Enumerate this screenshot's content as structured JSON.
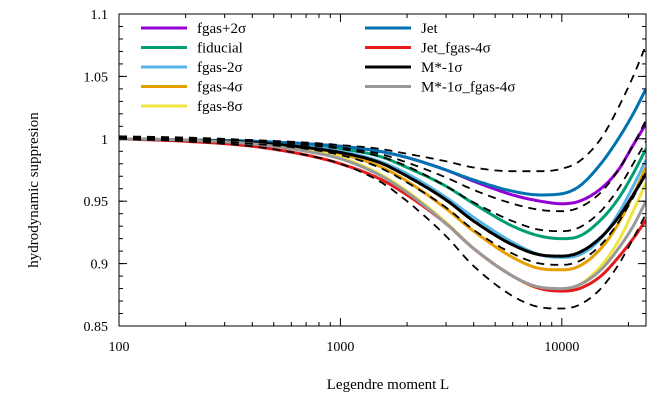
{
  "chart_data": {
    "type": "line",
    "title": "",
    "xlabel": "Legendre moment L",
    "ylabel": "hydrodynamic suppresion",
    "xscale": "log",
    "xlim": [
      100,
      24000
    ],
    "ylim": [
      0.85,
      1.1
    ],
    "x_ticks": [
      {
        "value": 100,
        "label": "100"
      },
      {
        "value": 1000,
        "label": "1000"
      },
      {
        "value": 10000,
        "label": "10000"
      }
    ],
    "y_ticks": [
      {
        "value": 0.85,
        "label": "0.85"
      },
      {
        "value": 0.9,
        "label": "0.9"
      },
      {
        "value": 0.95,
        "label": "0.95"
      },
      {
        "value": 1.0,
        "label": "1"
      },
      {
        "value": 1.05,
        "label": "1.05"
      },
      {
        "value": 1.1,
        "label": "1.1"
      }
    ],
    "grid": false,
    "legend_position": "top-left",
    "x": [
      100,
      200,
      400,
      700,
      1000,
      1500,
      2000,
      3000,
      4000,
      6000,
      8000,
      10000,
      12000,
      15000,
      18000,
      21000,
      24000
    ],
    "series": [
      {
        "name": "fgas+2σ",
        "color": "#9400d3",
        "dashed": false,
        "legend_col": 0,
        "values": [
          1.0,
          0.999,
          0.998,
          0.996,
          0.994,
          0.99,
          0.985,
          0.975,
          0.966,
          0.955,
          0.95,
          0.948,
          0.95,
          0.96,
          0.975,
          0.995,
          1.012
        ]
      },
      {
        "name": "fiducial",
        "color": "#009e73",
        "dashed": false,
        "legend_col": 0,
        "values": [
          1.0,
          0.999,
          0.998,
          0.995,
          0.992,
          0.986,
          0.977,
          0.962,
          0.948,
          0.93,
          0.922,
          0.92,
          0.922,
          0.935,
          0.952,
          0.972,
          0.992
        ]
      },
      {
        "name": "fgas-2σ",
        "color": "#56b4e9",
        "dashed": false,
        "legend_col": 0,
        "values": [
          1.0,
          0.999,
          0.997,
          0.994,
          0.99,
          0.982,
          0.972,
          0.953,
          0.937,
          0.917,
          0.907,
          0.905,
          0.907,
          0.92,
          0.94,
          0.962,
          0.983
        ]
      },
      {
        "name": "fgas-4σ",
        "color": "#e69f00",
        "dashed": false,
        "legend_col": 0,
        "values": [
          1.0,
          0.999,
          0.997,
          0.993,
          0.988,
          0.978,
          0.966,
          0.944,
          0.926,
          0.905,
          0.896,
          0.895,
          0.898,
          0.912,
          0.932,
          0.955,
          0.977
        ]
      },
      {
        "name": "fgas-8σ",
        "color": "#f0e442",
        "dashed": false,
        "legend_col": 0,
        "values": [
          1.0,
          0.999,
          0.996,
          0.991,
          0.985,
          0.972,
          0.958,
          0.933,
          0.912,
          0.89,
          0.88,
          0.879,
          0.883,
          0.898,
          0.918,
          0.942,
          0.965
        ]
      },
      {
        "name": "Jet",
        "color": "#0072b2",
        "dashed": false,
        "legend_col": 1,
        "values": [
          1.0,
          0.999,
          0.998,
          0.996,
          0.994,
          0.99,
          0.985,
          0.975,
          0.967,
          0.958,
          0.955,
          0.956,
          0.962,
          0.98,
          1.0,
          1.02,
          1.04
        ]
      },
      {
        "name": "Jet_fgas-4σ",
        "color": "#e41a1c",
        "dashed": false,
        "legend_col": 1,
        "values": [
          1.0,
          0.998,
          0.994,
          0.987,
          0.98,
          0.968,
          0.955,
          0.932,
          0.912,
          0.89,
          0.88,
          0.878,
          0.88,
          0.89,
          0.905,
          0.92,
          0.935
        ]
      },
      {
        "name": "M*-1σ",
        "color": "#000000",
        "dashed": false,
        "legend_col": 1,
        "values": [
          1.0,
          0.999,
          0.997,
          0.993,
          0.989,
          0.981,
          0.97,
          0.951,
          0.934,
          0.915,
          0.907,
          0.906,
          0.909,
          0.921,
          0.937,
          0.955,
          0.972
        ]
      },
      {
        "name": "M*-1σ_fgas-4σ",
        "color": "#999999",
        "dashed": false,
        "legend_col": 1,
        "values": [
          1.0,
          0.999,
          0.996,
          0.99,
          0.984,
          0.971,
          0.957,
          0.932,
          0.912,
          0.89,
          0.881,
          0.88,
          0.883,
          0.895,
          0.912,
          0.93,
          0.95
        ]
      },
      {
        "name": "",
        "color": "#000000",
        "dashed": true,
        "legend_col": -1,
        "values": [
          1.002,
          1.001,
          0.999,
          0.997,
          0.995,
          0.992,
          0.988,
          0.982,
          0.977,
          0.974,
          0.974,
          0.976,
          0.982,
          1.0,
          1.025,
          1.05,
          1.075
        ]
      },
      {
        "name": "",
        "color": "#000000",
        "dashed": true,
        "legend_col": -1,
        "values": [
          1.001,
          1.0,
          0.998,
          0.996,
          0.993,
          0.988,
          0.981,
          0.969,
          0.959,
          0.948,
          0.943,
          0.942,
          0.945,
          0.957,
          0.975,
          0.995,
          1.015
        ]
      },
      {
        "name": "",
        "color": "#000000",
        "dashed": true,
        "legend_col": -1,
        "values": [
          1.001,
          1.0,
          0.998,
          0.995,
          0.992,
          0.986,
          0.978,
          0.962,
          0.949,
          0.934,
          0.927,
          0.926,
          0.929,
          0.942,
          0.96,
          0.98,
          0.998
        ]
      },
      {
        "name": "",
        "color": "#000000",
        "dashed": true,
        "legend_col": -1,
        "values": [
          1.001,
          0.999,
          0.996,
          0.992,
          0.987,
          0.977,
          0.965,
          0.945,
          0.927,
          0.908,
          0.9,
          0.899,
          0.902,
          0.915,
          0.933,
          0.953,
          0.972
        ]
      },
      {
        "name": "",
        "color": "#000000",
        "dashed": true,
        "legend_col": -1,
        "values": [
          1.0,
          0.998,
          0.994,
          0.987,
          0.98,
          0.966,
          0.95,
          0.922,
          0.898,
          0.874,
          0.865,
          0.864,
          0.867,
          0.88,
          0.899,
          0.92,
          0.94
        ]
      }
    ]
  }
}
